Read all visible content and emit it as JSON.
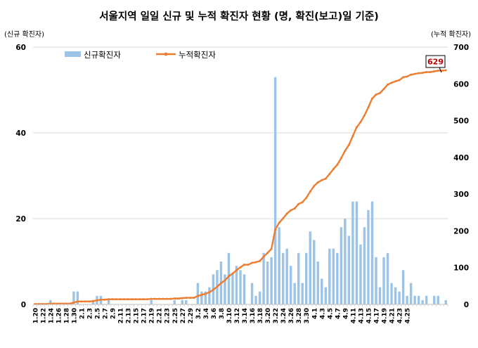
{
  "chart_data": {
    "type": "bar+line",
    "title": "서울지역 일일 신규 및 누적 확진자 현황 (명, 확진(보고)일 기준)",
    "y_left_label": "(신규 확진자)",
    "y_right_label": "(누적 확진자)",
    "y_left_range": [
      0,
      60
    ],
    "y_right_range": [
      0,
      700
    ],
    "y_left_ticks": [
      "0",
      "20",
      "40",
      "60"
    ],
    "y_right_ticks": [
      "0",
      "100",
      "200",
      "300",
      "400",
      "500",
      "600",
      "700"
    ],
    "x_tick_labels": [
      "1.20",
      "1.22",
      "1.24",
      "1.26",
      "1.28",
      "1.30",
      "2.1",
      "2.3",
      "2.5",
      "2.7",
      "2.9",
      "2.11",
      "2.13",
      "2.15",
      "2.17",
      "2.19",
      "2.21",
      "2.23",
      "2.25",
      "2.27",
      "2.29",
      "3.2",
      "3.4",
      "3.6",
      "3.8",
      "3.10",
      "3.12",
      "3.14",
      "3.16",
      "3.18",
      "3.20",
      "3.22",
      "3.24",
      "3.26",
      "3.28",
      "3.30",
      "4.1",
      "4.3",
      "4.5",
      "4.7",
      "4.9",
      "4.11",
      "4.13",
      "4.15",
      "4.17",
      "4.19",
      "4.21",
      "4.23",
      "4.25"
    ],
    "series": [
      {
        "name": "신규확진자",
        "type": "bar",
        "axis": "left",
        "color": "#9dc3e6",
        "values": [
          0,
          0,
          0,
          0,
          1,
          0,
          0,
          0,
          0,
          0,
          3,
          3,
          0,
          0,
          0,
          1,
          2,
          2,
          0,
          1,
          0,
          0,
          0,
          0,
          0,
          0,
          0,
          0,
          0,
          0,
          1,
          0,
          0,
          0,
          0,
          0,
          1,
          0,
          1,
          1,
          0,
          0,
          5,
          3,
          3,
          4,
          7,
          8,
          10,
          7,
          12,
          7,
          9,
          8,
          7,
          0,
          5,
          2,
          3,
          12,
          10,
          11,
          53,
          18,
          12,
          13,
          9,
          5,
          12,
          5,
          12,
          17,
          15,
          10,
          6,
          4,
          13,
          13,
          12,
          18,
          20,
          16,
          24,
          24,
          14,
          18,
          22,
          24,
          11,
          4,
          11,
          12,
          5,
          4,
          3,
          8,
          2,
          5,
          2,
          2,
          1,
          2,
          0,
          2,
          2,
          0,
          1
        ]
      },
      {
        "name": "누적확진자",
        "type": "line",
        "axis": "right",
        "color": "#ed7d31",
        "values": [
          1,
          1,
          1,
          1,
          2,
          2,
          2,
          2,
          2,
          2,
          5,
          8,
          8,
          8,
          8,
          9,
          11,
          13,
          13,
          14,
          14,
          14,
          14,
          14,
          14,
          14,
          14,
          14,
          14,
          14,
          15,
          15,
          15,
          15,
          15,
          15,
          16,
          16,
          17,
          18,
          18,
          18,
          23,
          26,
          29,
          33,
          40,
          48,
          58,
          65,
          77,
          84,
          93,
          101,
          108,
          108,
          113,
          115,
          118,
          130,
          140,
          151,
          204,
          222,
          234,
          247,
          256,
          261,
          273,
          278,
          290,
          307,
          322,
          332,
          338,
          342,
          355,
          368,
          380,
          398,
          418,
          434,
          458,
          482,
          496,
          514,
          536,
          560,
          571,
          575,
          586,
          598,
          603,
          607,
          610,
          618,
          620,
          625,
          627,
          629,
          630,
          632,
          632,
          634,
          636,
          636,
          637
        ],
        "callout_label": "629"
      }
    ],
    "legend_position": "top-left"
  }
}
